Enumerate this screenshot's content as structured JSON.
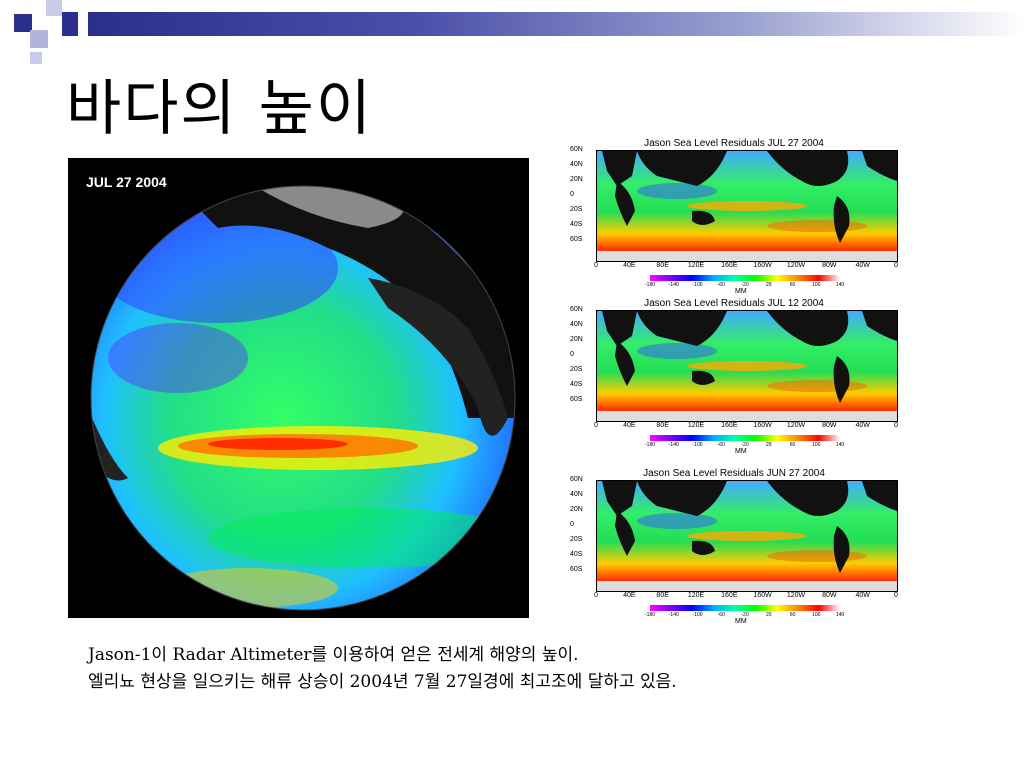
{
  "slide": {
    "title": "바다의 높이",
    "caption_line1": "Jason-1이 Radar Altimeter를 이용하여 얻은 전세계 해양의 높이.",
    "caption_line2": "엘리뇨 현상을 일으키는 해류 상승이 2004년 7월 27일경에 최고조에 달하고 있음."
  },
  "globe": {
    "date_label": "JUL 27 2004"
  },
  "maps": [
    {
      "title": "Jason Sea Level Residuals  JUL 27 2004"
    },
    {
      "title": "Jason Sea Level Residuals  JUL 12 2004"
    },
    {
      "title": "Jason Sea Level Residuals  JUN 27 2004"
    }
  ],
  "map_axes": {
    "lat_labels": [
      "60N",
      "40N",
      "20N",
      "0",
      "20S",
      "40S",
      "60S"
    ],
    "lon_labels": [
      "0",
      "40E",
      "80E",
      "120E",
      "160E",
      "160W",
      "120W",
      "80W",
      "40W",
      "0"
    ],
    "colorbar_ticks": [
      "-180",
      "-140",
      "-100",
      "-60",
      "-20",
      "20",
      "60",
      "100",
      "140"
    ],
    "colorbar_unit": "MM"
  },
  "colors": {
    "bar_dark": "#2b2f8c",
    "bar_light": "#9aa0d0",
    "square_dark": "#2b2f8c",
    "square_light": "#b0b4dc"
  }
}
